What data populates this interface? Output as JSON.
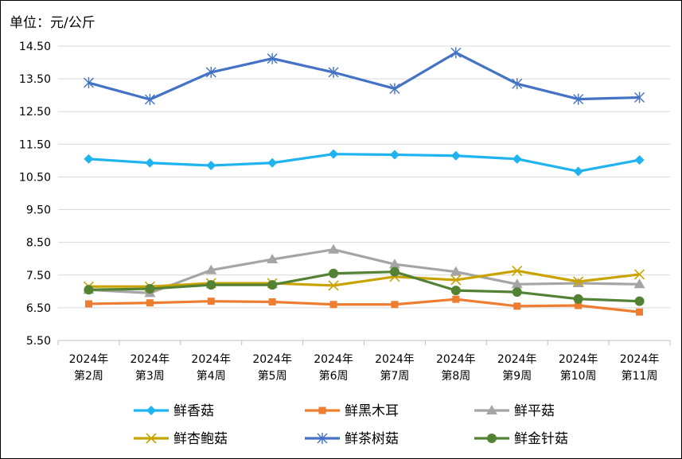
{
  "chart_data": {
    "type": "line",
    "unit_label": "单位：元/公斤",
    "y_ticks": [
      "14.50",
      "13.50",
      "12.50",
      "11.50",
      "10.50",
      "9.50",
      "8.50",
      "7.50",
      "6.50",
      "5.50"
    ],
    "ylim": [
      5.5,
      14.5
    ],
    "categories": [
      [
        "2024年",
        "第2周"
      ],
      [
        "2024年",
        "第3周"
      ],
      [
        "2024年",
        "第4周"
      ],
      [
        "2024年",
        "第5周"
      ],
      [
        "2024年",
        "第6周"
      ],
      [
        "2024年",
        "第7周"
      ],
      [
        "2024年",
        "第8周"
      ],
      [
        "2024年",
        "第9周"
      ],
      [
        "2024年",
        "第10周"
      ],
      [
        "2024年",
        "第11周"
      ]
    ],
    "grid": "horizontal",
    "legend_position": "bottom",
    "series": [
      {
        "name": "鲜香菇",
        "color": "#1FB3F0",
        "marker": "diamond",
        "values": [
          11.05,
          10.93,
          10.85,
          10.93,
          11.2,
          11.18,
          11.15,
          11.05,
          10.67,
          11.02
        ]
      },
      {
        "name": "鲜黑木耳",
        "color": "#ED7D31",
        "marker": "square",
        "values": [
          6.62,
          6.65,
          6.7,
          6.68,
          6.6,
          6.6,
          6.76,
          6.55,
          6.57,
          6.37
        ]
      },
      {
        "name": "鲜平菇",
        "color": "#A5A5A5",
        "marker": "triangle",
        "values": [
          7.05,
          6.95,
          7.65,
          7.98,
          8.28,
          7.83,
          7.6,
          7.22,
          7.25,
          7.22
        ]
      },
      {
        "name": "鲜杏鲍菇",
        "color": "#C9A300",
        "marker": "x",
        "values": [
          7.15,
          7.15,
          7.25,
          7.25,
          7.18,
          7.45,
          7.35,
          7.63,
          7.3,
          7.52
        ]
      },
      {
        "name": "鲜茶树菇",
        "color": "#4472C4",
        "marker": "star",
        "values": [
          13.38,
          12.87,
          13.7,
          14.12,
          13.7,
          13.2,
          14.3,
          13.35,
          12.88,
          12.93
        ]
      },
      {
        "name": "鲜金针菇",
        "color": "#548235",
        "marker": "circle",
        "values": [
          7.05,
          7.08,
          7.2,
          7.2,
          7.55,
          7.6,
          7.03,
          6.98,
          6.77,
          6.7
        ]
      }
    ]
  }
}
